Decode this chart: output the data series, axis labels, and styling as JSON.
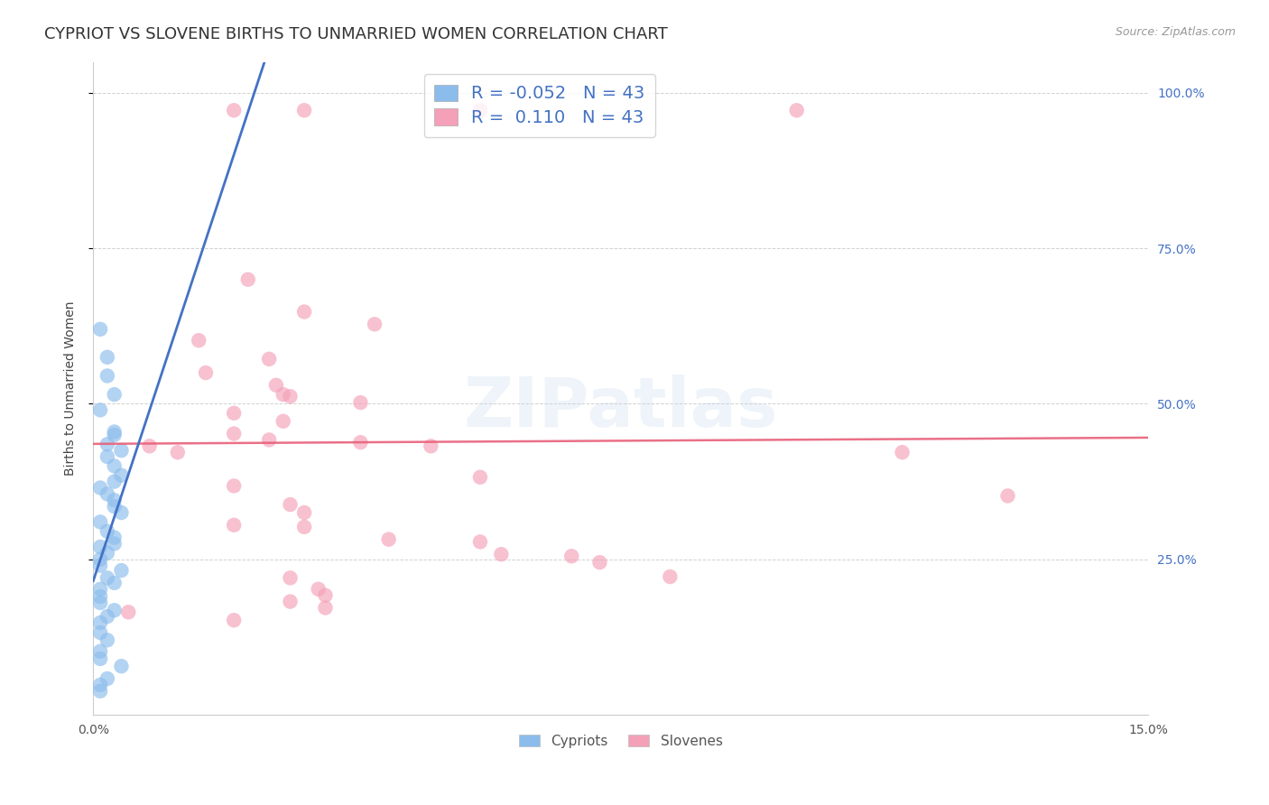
{
  "title": "CYPRIOT VS SLOVENE BIRTHS TO UNMARRIED WOMEN CORRELATION CHART",
  "source_text": "Source: ZipAtlas.com",
  "ylabel": "Births to Unmarried Women",
  "cypriot_R": -0.052,
  "cypriot_N": 43,
  "slovene_R": 0.11,
  "slovene_N": 43,
  "cypriot_color": "#8BBCEC",
  "slovene_color": "#F4A0B8",
  "cypriot_line_solid_color": "#4472C4",
  "cypriot_line_dash_color": "#9EC6E8",
  "slovene_line_color": "#E8607A",
  "background_color": "#ffffff",
  "grid_color": "#cccccc",
  "title_fontsize": 13,
  "axis_label_fontsize": 10,
  "tick_fontsize": 10,
  "legend_fontsize": 14,
  "legend_text_color": "#4472C4",
  "right_tick_color": "#4472C4",
  "xlim": [
    0.0,
    0.15
  ],
  "ylim": [
    0.0,
    1.05
  ],
  "cypriot_points": [
    [
      0.001,
      0.62
    ],
    [
      0.002,
      0.575
    ],
    [
      0.002,
      0.545
    ],
    [
      0.003,
      0.515
    ],
    [
      0.001,
      0.49
    ],
    [
      0.003,
      0.455
    ],
    [
      0.003,
      0.45
    ],
    [
      0.002,
      0.435
    ],
    [
      0.004,
      0.425
    ],
    [
      0.002,
      0.415
    ],
    [
      0.003,
      0.4
    ],
    [
      0.004,
      0.385
    ],
    [
      0.003,
      0.375
    ],
    [
      0.001,
      0.365
    ],
    [
      0.002,
      0.355
    ],
    [
      0.003,
      0.345
    ],
    [
      0.003,
      0.335
    ],
    [
      0.004,
      0.325
    ],
    [
      0.001,
      0.31
    ],
    [
      0.002,
      0.295
    ],
    [
      0.003,
      0.285
    ],
    [
      0.003,
      0.275
    ],
    [
      0.001,
      0.27
    ],
    [
      0.002,
      0.26
    ],
    [
      0.001,
      0.25
    ],
    [
      0.001,
      0.24
    ],
    [
      0.004,
      0.232
    ],
    [
      0.002,
      0.22
    ],
    [
      0.003,
      0.212
    ],
    [
      0.001,
      0.202
    ],
    [
      0.001,
      0.19
    ],
    [
      0.001,
      0.18
    ],
    [
      0.003,
      0.168
    ],
    [
      0.002,
      0.158
    ],
    [
      0.001,
      0.148
    ],
    [
      0.001,
      0.132
    ],
    [
      0.002,
      0.12
    ],
    [
      0.001,
      0.102
    ],
    [
      0.001,
      0.09
    ],
    [
      0.004,
      0.078
    ],
    [
      0.002,
      0.058
    ],
    [
      0.001,
      0.048
    ],
    [
      0.001,
      0.038
    ]
  ],
  "slovene_points": [
    [
      0.02,
      0.972
    ],
    [
      0.03,
      0.972
    ],
    [
      0.055,
      0.972
    ],
    [
      0.1,
      0.972
    ],
    [
      0.022,
      0.7
    ],
    [
      0.03,
      0.648
    ],
    [
      0.04,
      0.628
    ],
    [
      0.015,
      0.602
    ],
    [
      0.025,
      0.572
    ],
    [
      0.016,
      0.55
    ],
    [
      0.026,
      0.53
    ],
    [
      0.027,
      0.515
    ],
    [
      0.028,
      0.512
    ],
    [
      0.038,
      0.502
    ],
    [
      0.02,
      0.485
    ],
    [
      0.027,
      0.472
    ],
    [
      0.02,
      0.452
    ],
    [
      0.025,
      0.442
    ],
    [
      0.038,
      0.438
    ],
    [
      0.048,
      0.432
    ],
    [
      0.055,
      0.382
    ],
    [
      0.02,
      0.368
    ],
    [
      0.028,
      0.338
    ],
    [
      0.03,
      0.325
    ],
    [
      0.02,
      0.305
    ],
    [
      0.03,
      0.302
    ],
    [
      0.042,
      0.282
    ],
    [
      0.055,
      0.278
    ],
    [
      0.058,
      0.258
    ],
    [
      0.068,
      0.255
    ],
    [
      0.072,
      0.245
    ],
    [
      0.082,
      0.222
    ],
    [
      0.028,
      0.22
    ],
    [
      0.032,
      0.202
    ],
    [
      0.033,
      0.192
    ],
    [
      0.028,
      0.182
    ],
    [
      0.033,
      0.172
    ],
    [
      0.02,
      0.152
    ],
    [
      0.115,
      0.422
    ],
    [
      0.13,
      0.352
    ],
    [
      0.008,
      0.432
    ],
    [
      0.012,
      0.422
    ],
    [
      0.005,
      0.165
    ]
  ],
  "watermark_text": "ZIPatlas",
  "watermark_color": "#c5d8ea",
  "watermark_alpha": 0.28,
  "watermark_fontsize": 55
}
